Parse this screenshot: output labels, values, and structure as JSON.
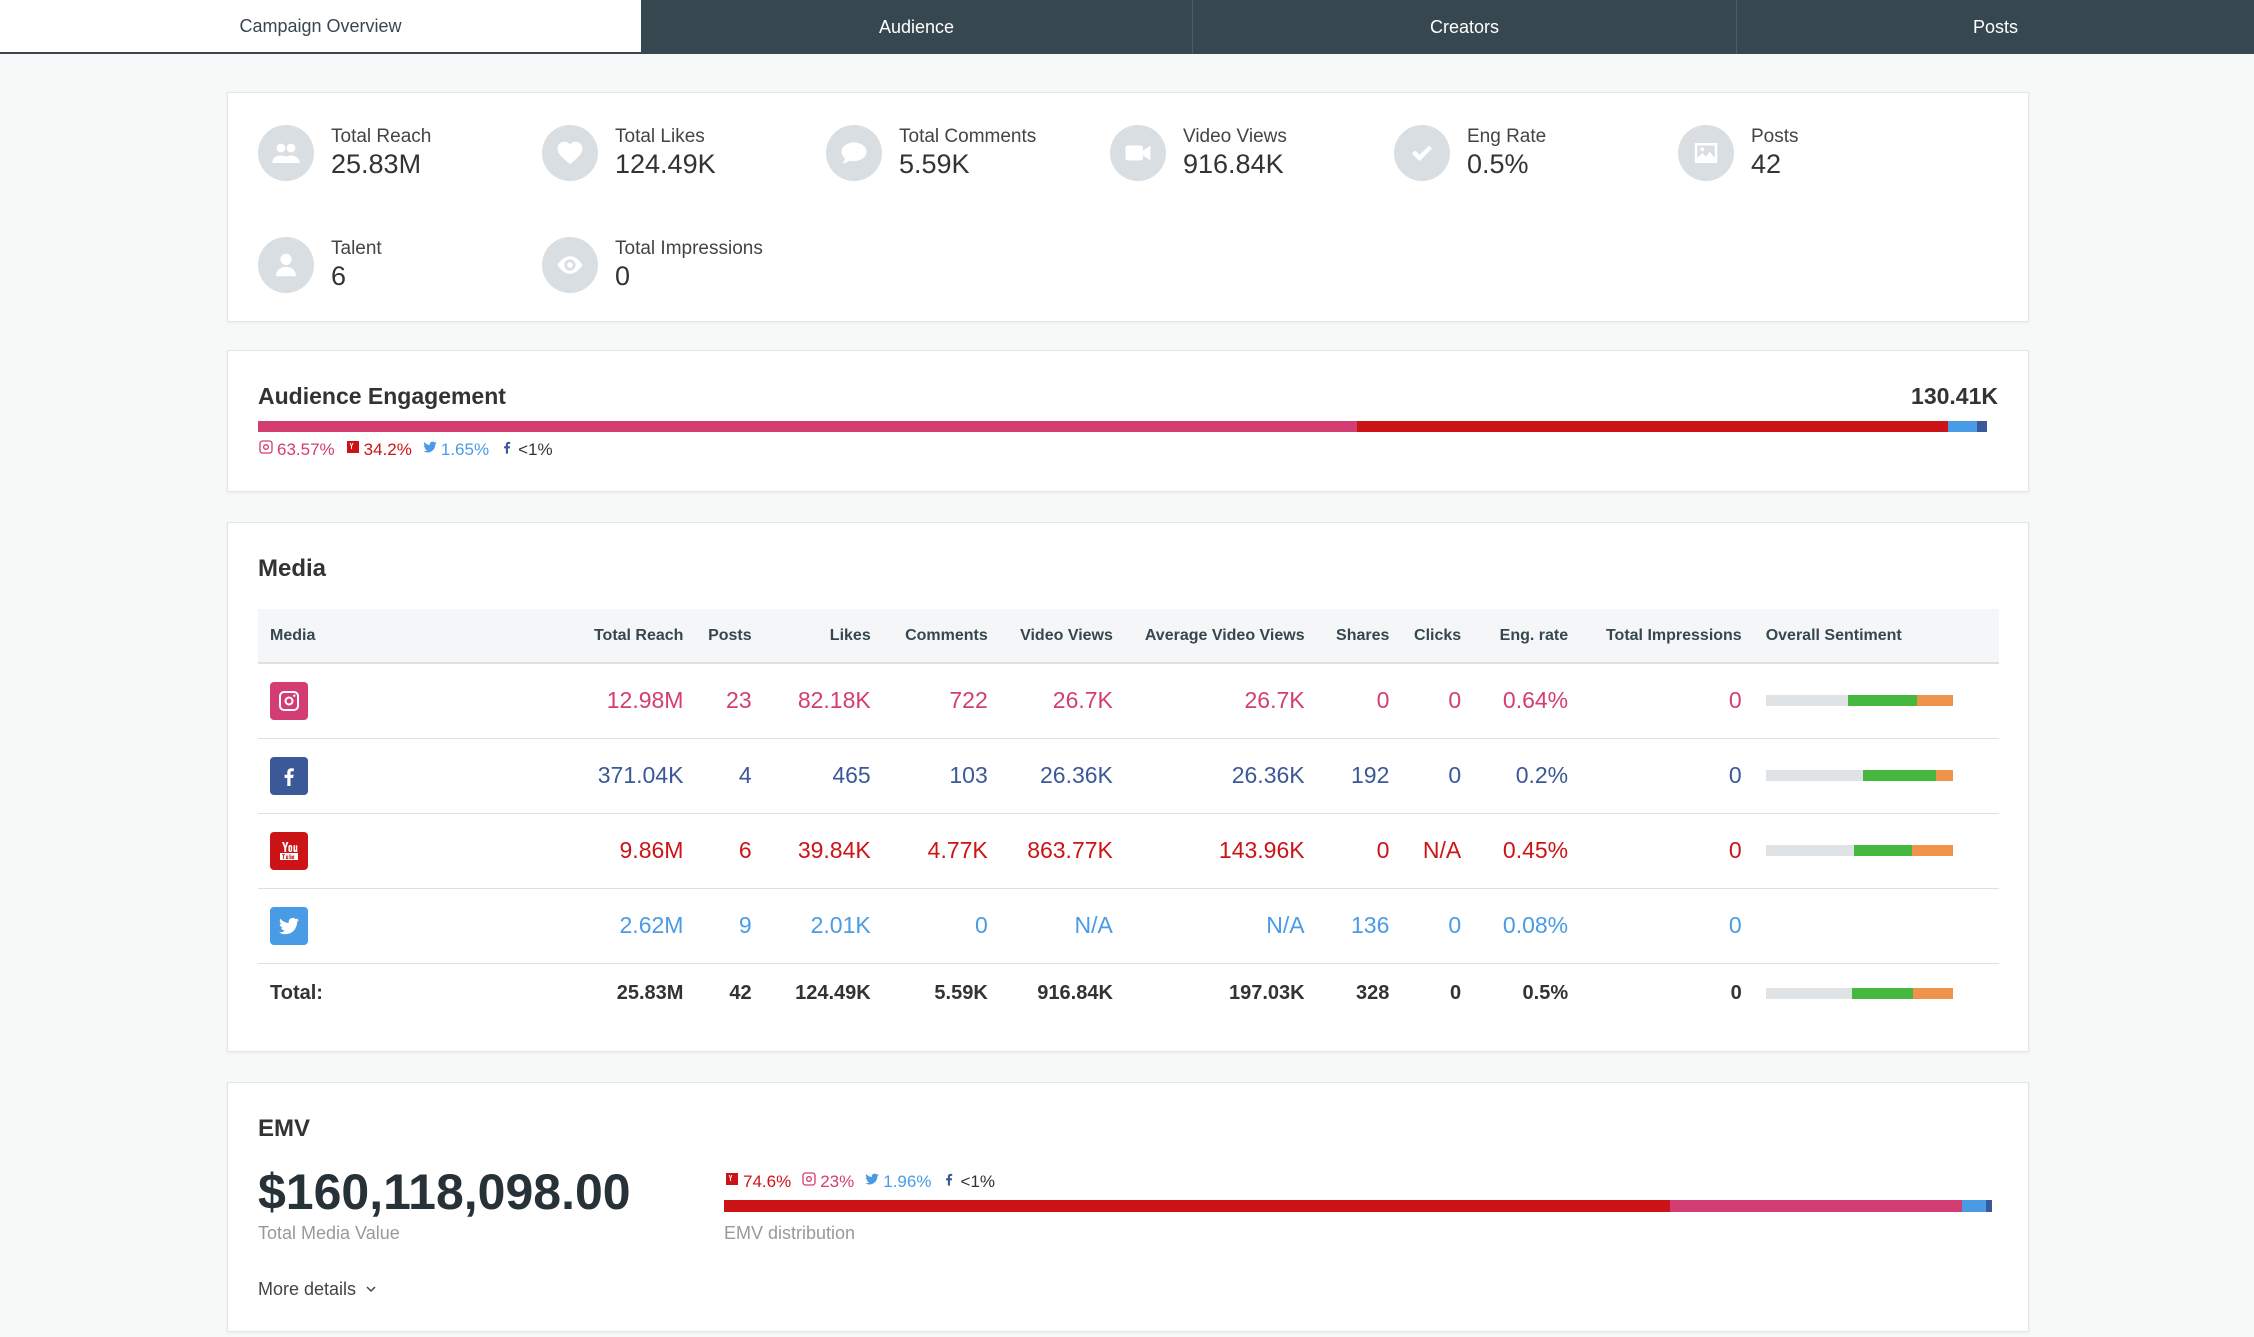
{
  "tabs": [
    "Campaign Overview",
    "Audience",
    "Creators",
    "Posts"
  ],
  "stats": [
    {
      "label": "Total Reach",
      "value": "25.83M",
      "icon": "users-icon"
    },
    {
      "label": "Total Likes",
      "value": "124.49K",
      "icon": "heart-icon"
    },
    {
      "label": "Total Comments",
      "value": "5.59K",
      "icon": "comment-icon"
    },
    {
      "label": "Video Views",
      "value": "916.84K",
      "icon": "video-camera-icon"
    },
    {
      "label": "Eng Rate",
      "value": "0.5%",
      "icon": "check-icon"
    },
    {
      "label": "Posts",
      "value": "42",
      "icon": "image-icon"
    },
    {
      "label": "Talent",
      "value": "6",
      "icon": "user-icon"
    },
    {
      "label": "Total Impressions",
      "value": "0",
      "icon": "eye-icon"
    }
  ],
  "engagement": {
    "title": "Audience Engagement",
    "total": "130.41K",
    "legend": [
      {
        "network": "instagram",
        "pct": "63.57%"
      },
      {
        "network": "youtube",
        "pct": "34.2%"
      },
      {
        "network": "twitter",
        "pct": "1.65%"
      },
      {
        "network": "facebook",
        "pct": "<1%"
      }
    ],
    "shares": [
      63.57,
      34.2,
      1.65,
      0.58
    ]
  },
  "media": {
    "title": "Media",
    "columns": [
      "Media",
      "Total Reach",
      "Posts",
      "Likes",
      "Comments",
      "Video Views",
      "Average Video Views",
      "Shares",
      "Clicks",
      "Eng. rate",
      "Total Impressions",
      "Overall Sentiment"
    ],
    "rows": [
      {
        "network": "instagram",
        "cells": [
          "12.98M",
          "23",
          "82.18K",
          "722",
          "26.7K",
          "26.7K",
          "0",
          "0",
          "0.64%",
          "0"
        ],
        "sentiment": [
          44,
          37,
          19
        ]
      },
      {
        "network": "facebook",
        "cells": [
          "371.04K",
          "4",
          "465",
          "103",
          "26.36K",
          "26.36K",
          "192",
          "0",
          "0.2%",
          "0"
        ],
        "sentiment": [
          52,
          39,
          9
        ]
      },
      {
        "network": "youtube",
        "cells": [
          "9.86M",
          "6",
          "39.84K",
          "4.77K",
          "863.77K",
          "143.96K",
          "0",
          "N/A",
          "0.45%",
          "0"
        ],
        "sentiment": [
          47,
          31,
          22
        ]
      },
      {
        "network": "twitter",
        "cells": [
          "2.62M",
          "9",
          "2.01K",
          "0",
          "N/A",
          "N/A",
          "136",
          "0",
          "0.08%",
          "0"
        ],
        "sentiment": null
      }
    ],
    "total": {
      "label": "Total:",
      "cells": [
        "25.83M",
        "42",
        "124.49K",
        "5.59K",
        "916.84K",
        "197.03K",
        "328",
        "0",
        "0.5%",
        "0"
      ],
      "sentiment": [
        46,
        33,
        21
      ]
    }
  },
  "emv": {
    "title": "EMV",
    "value": "$160,118,098.00",
    "subtitle": "Total Media Value",
    "more": "More details",
    "distribution_label": "EMV distribution",
    "legend": [
      {
        "network": "youtube",
        "pct": "74.6%"
      },
      {
        "network": "instagram",
        "pct": "23%"
      },
      {
        "network": "twitter",
        "pct": "1.96%"
      },
      {
        "network": "facebook",
        "pct": "<1%"
      }
    ],
    "shares": [
      74.6,
      23,
      1.96,
      0.44
    ]
  },
  "colors": {
    "instagram": "#d43d72",
    "youtube": "#cc1417",
    "twitter": "#4a9be6",
    "facebook": "#3b5998",
    "sentiment_neutral": "#dfe3e6",
    "sentiment_positive": "#46b83f",
    "sentiment_negative": "#f0934a"
  }
}
